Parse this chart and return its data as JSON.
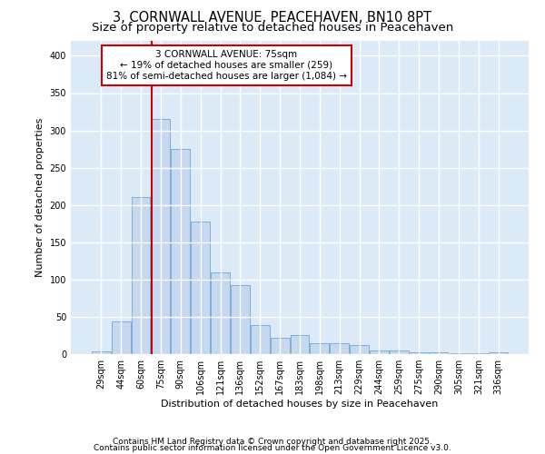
{
  "title": "3, CORNWALL AVENUE, PEACEHAVEN, BN10 8PT",
  "subtitle": "Size of property relative to detached houses in Peacehaven",
  "xlabel": "Distribution of detached houses by size in Peacehaven",
  "ylabel": "Number of detached properties",
  "categories": [
    "29sqm",
    "44sqm",
    "60sqm",
    "75sqm",
    "90sqm",
    "106sqm",
    "121sqm",
    "136sqm",
    "152sqm",
    "167sqm",
    "183sqm",
    "198sqm",
    "213sqm",
    "229sqm",
    "244sqm",
    "259sqm",
    "275sqm",
    "290sqm",
    "305sqm",
    "321sqm",
    "336sqm"
  ],
  "values": [
    4,
    44,
    210,
    315,
    275,
    178,
    110,
    93,
    39,
    22,
    25,
    15,
    15,
    12,
    5,
    5,
    3,
    2,
    1,
    1,
    3
  ],
  "bar_color": "#c5d8f0",
  "bar_edge_color": "#7bafd4",
  "highlight_index": 3,
  "highlight_color": "#cc0000",
  "annotation_text": "3 CORNWALL AVENUE: 75sqm\n← 19% of detached houses are smaller (259)\n81% of semi-detached houses are larger (1,084) →",
  "annotation_box_facecolor": "#ffffff",
  "annotation_box_edge": "#cc0000",
  "ylim": [
    0,
    420
  ],
  "yticks": [
    0,
    50,
    100,
    150,
    200,
    250,
    300,
    350,
    400
  ],
  "fig_bg": "#ffffff",
  "plot_bg": "#dce9f7",
  "grid_color": "#ffffff",
  "title_fontsize": 10.5,
  "subtitle_fontsize": 9.5,
  "axis_label_fontsize": 8,
  "tick_fontsize": 7,
  "annotation_fontsize": 7.5,
  "footer_fontsize": 6.5,
  "footer_line1": "Contains HM Land Registry data © Crown copyright and database right 2025.",
  "footer_line2": "Contains public sector information licensed under the Open Government Licence v3.0."
}
